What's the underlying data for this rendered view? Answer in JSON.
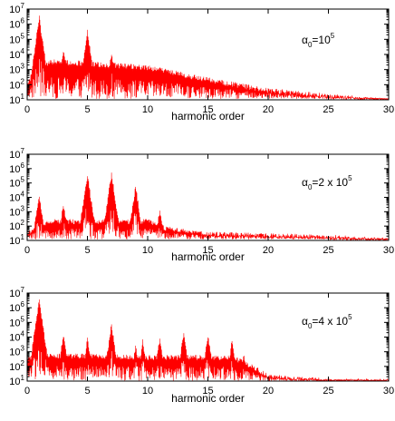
{
  "chart_data": [
    {
      "type": "line",
      "xlabel": "harmonic order",
      "ylabel": "",
      "xlim": [
        0,
        30
      ],
      "ylim": [
        10,
        10000000
      ],
      "yscale": "log",
      "grid": false,
      "xticks": [
        "0",
        "5",
        "10",
        "15",
        "20",
        "25",
        "30"
      ],
      "yticks": [
        {
          "base": "10",
          "exp": "1"
        },
        {
          "base": "10",
          "exp": "2"
        },
        {
          "base": "10",
          "exp": "3"
        },
        {
          "base": "10",
          "exp": "4"
        },
        {
          "base": "10",
          "exp": "5"
        },
        {
          "base": "10",
          "exp": "6"
        },
        {
          "base": "10",
          "exp": "7"
        }
      ],
      "annotation": {
        "main": "α",
        "sub": "0",
        "rest": "=10",
        "sup": "5"
      },
      "series_color": "#ff0000",
      "peaks": [
        {
          "x": 1.0,
          "y": 4000000
        },
        {
          "x": 3.0,
          "y": 30000
        },
        {
          "x": 5.0,
          "y": 500000
        },
        {
          "x": 7.0,
          "y": 20000
        }
      ],
      "envelope": [
        {
          "x": 0,
          "y": 200
        },
        {
          "x": 2,
          "y": 5000
        },
        {
          "x": 10,
          "y": 2000
        },
        {
          "x": 15,
          "y": 300
        },
        {
          "x": 20,
          "y": 60
        },
        {
          "x": 25,
          "y": 25
        },
        {
          "x": 30,
          "y": 12
        }
      ],
      "floor_y": 12
    },
    {
      "type": "line",
      "xlabel": "harmonic order",
      "ylabel": "",
      "xlim": [
        0,
        30
      ],
      "ylim": [
        10,
        10000000
      ],
      "yscale": "log",
      "grid": false,
      "xticks": [
        "0",
        "5",
        "10",
        "15",
        "20",
        "25",
        "30"
      ],
      "yticks": [
        {
          "base": "10",
          "exp": "1"
        },
        {
          "base": "10",
          "exp": "2"
        },
        {
          "base": "10",
          "exp": "3"
        },
        {
          "base": "10",
          "exp": "4"
        },
        {
          "base": "10",
          "exp": "5"
        },
        {
          "base": "10",
          "exp": "6"
        },
        {
          "base": "10",
          "exp": "7"
        }
      ],
      "annotation": {
        "main": "α",
        "sub": "0",
        "rest": "=2 x 10",
        "sup": "5"
      },
      "series_color": "#ff0000",
      "peaks": [
        {
          "x": 1.0,
          "y": 20000
        },
        {
          "x": 3.0,
          "y": 5000
        },
        {
          "x": 5.0,
          "y": 500000
        },
        {
          "x": 7.0,
          "y": 600000
        },
        {
          "x": 9.0,
          "y": 80000
        },
        {
          "x": 11.0,
          "y": 2000
        }
      ],
      "envelope": [
        {
          "x": 0,
          "y": 50
        },
        {
          "x": 2,
          "y": 300
        },
        {
          "x": 10,
          "y": 300
        },
        {
          "x": 11.5,
          "y": 100
        },
        {
          "x": 15,
          "y": 40
        },
        {
          "x": 25,
          "y": 25
        },
        {
          "x": 30,
          "y": 15
        }
      ],
      "floor_y": 12
    },
    {
      "type": "line",
      "xlabel": "harmonic order",
      "ylabel": "",
      "xlim": [
        0,
        30
      ],
      "ylim": [
        10,
        10000000
      ],
      "yscale": "log",
      "grid": false,
      "xticks": [
        "0",
        "5",
        "10",
        "15",
        "20",
        "25",
        "30"
      ],
      "yticks": [
        {
          "base": "10",
          "exp": "1"
        },
        {
          "base": "10",
          "exp": "2"
        },
        {
          "base": "10",
          "exp": "3"
        },
        {
          "base": "10",
          "exp": "4"
        },
        {
          "base": "10",
          "exp": "5"
        },
        {
          "base": "10",
          "exp": "6"
        },
        {
          "base": "10",
          "exp": "7"
        }
      ],
      "annotation": {
        "main": "α",
        "sub": "0",
        "rest": "=4 x 10",
        "sup": "5"
      },
      "series_color": "#ff0000",
      "peaks": [
        {
          "x": 1.0,
          "y": 5000000
        },
        {
          "x": 3.0,
          "y": 20000
        },
        {
          "x": 5.0,
          "y": 10000
        },
        {
          "x": 7.0,
          "y": 100000
        },
        {
          "x": 9.0,
          "y": 4000
        },
        {
          "x": 9.6,
          "y": 8000
        },
        {
          "x": 11.0,
          "y": 10000
        },
        {
          "x": 13.0,
          "y": 30000
        },
        {
          "x": 15.0,
          "y": 20000
        },
        {
          "x": 17.0,
          "y": 8000
        },
        {
          "x": 18.0,
          "y": 1000
        }
      ],
      "envelope": [
        {
          "x": 0,
          "y": 500
        },
        {
          "x": 2,
          "y": 800
        },
        {
          "x": 10,
          "y": 600
        },
        {
          "x": 17,
          "y": 600
        },
        {
          "x": 19,
          "y": 100
        },
        {
          "x": 20,
          "y": 30
        },
        {
          "x": 25,
          "y": 15
        },
        {
          "x": 30,
          "y": 14
        }
      ],
      "floor_y": 11
    }
  ]
}
